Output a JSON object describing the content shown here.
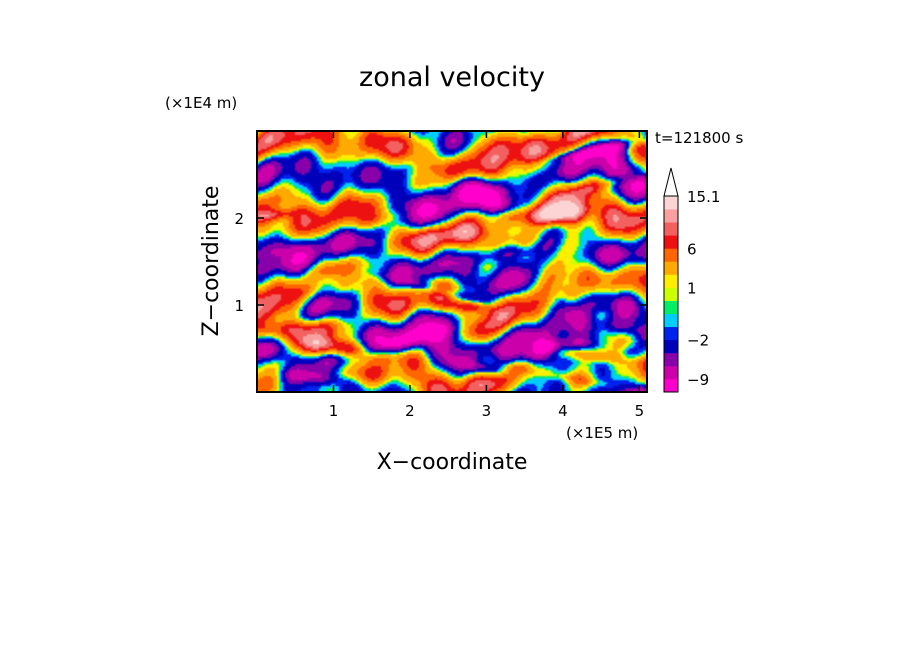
{
  "chart_data": {
    "type": "heatmap",
    "title": "zonal velocity",
    "xlabel": "X−coordinate",
    "ylabel": "Z−coordinate",
    "x_unit_label": "(×1E5 m)",
    "y_unit_label": "(×1E4 m)",
    "timestamp": "t=121800 s",
    "xlim": [
      0,
      5.1
    ],
    "ylim": [
      0,
      3.0
    ],
    "x_ticks": [
      1,
      2,
      3,
      4,
      5
    ],
    "y_ticks": [
      1,
      2
    ],
    "x_tick_labels": [
      "1",
      "2",
      "3",
      "4",
      "5"
    ],
    "y_tick_labels": [
      "1",
      "2"
    ],
    "colorbar": {
      "tick_values": [
        15.1,
        6,
        1,
        -2,
        -9
      ],
      "tick_labels": [
        "15.1",
        "6",
        "1",
        "−2",
        "−9"
      ],
      "colors": [
        "#ff00cc",
        "#cc00aa",
        "#8800aa",
        "#0000bb",
        "#0022ee",
        "#00ccff",
        "#00ee66",
        "#ccff00",
        "#ffee00",
        "#ffaa00",
        "#ff6600",
        "#ee1111",
        "#f26060",
        "#f8a0a0",
        "#fcd4d4"
      ],
      "levels": [
        -12,
        -9,
        -6,
        -4,
        -2,
        -1,
        0,
        0.5,
        1,
        2,
        4,
        6,
        8,
        10,
        12.5,
        15.1
      ],
      "extends": "max"
    }
  }
}
